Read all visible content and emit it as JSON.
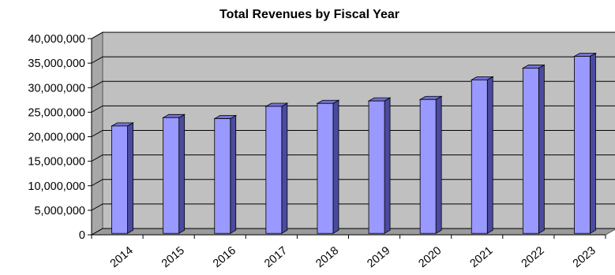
{
  "chart_data": {
    "type": "bar",
    "title": "Total Revenues by Fiscal Year",
    "xlabel": "",
    "ylabel": "",
    "categories": [
      "2014",
      "2015",
      "2016",
      "2017",
      "2018",
      "2019",
      "2020",
      "2021",
      "2022",
      "2023"
    ],
    "values": [
      21900000,
      23600000,
      23400000,
      25900000,
      26500000,
      27000000,
      27300000,
      31300000,
      33700000,
      36100000
    ],
    "ylim": [
      0,
      40000000
    ],
    "yticks": [
      "0",
      "5,000,000",
      "10,000,000",
      "15,000,000",
      "20,000,000",
      "25,000,000",
      "30,000,000",
      "35,000,000",
      "40,000,000"
    ],
    "grid": true,
    "legend": "none",
    "style_3d": true,
    "colors": {
      "bar_front": "#9999ff",
      "bar_side": "#4a4a9e",
      "bar_top": "#7272d6",
      "wall": "#c0c0c0",
      "floor": "#9a9a9a",
      "gridline": "#000000"
    }
  }
}
